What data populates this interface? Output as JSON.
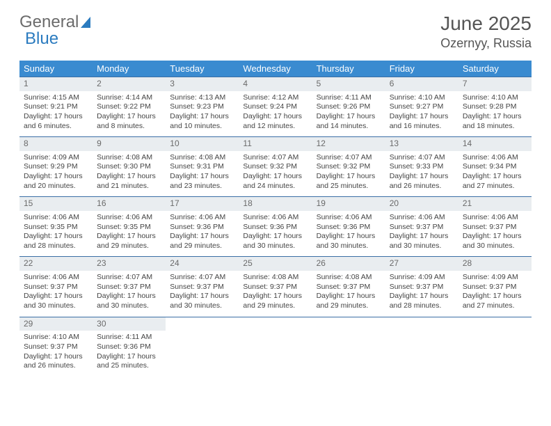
{
  "brand": {
    "part1": "General",
    "part2": "Blue"
  },
  "title": {
    "month": "June 2025",
    "location": "Ozernyy, Russia"
  },
  "colors": {
    "header_bg": "#3a8bd0",
    "daynum_bg": "#e9edf0",
    "rule": "#3a6ea5",
    "text_muted": "#6a6a6a",
    "brand_gray": "#6b6b6b",
    "brand_blue": "#2b7bbf"
  },
  "weekdays": [
    "Sunday",
    "Monday",
    "Tuesday",
    "Wednesday",
    "Thursday",
    "Friday",
    "Saturday"
  ],
  "weeks": [
    [
      {
        "n": "1",
        "sunrise": "Sunrise: 4:15 AM",
        "sunset": "Sunset: 9:21 PM",
        "day1": "Daylight: 17 hours",
        "day2": "and 6 minutes."
      },
      {
        "n": "2",
        "sunrise": "Sunrise: 4:14 AM",
        "sunset": "Sunset: 9:22 PM",
        "day1": "Daylight: 17 hours",
        "day2": "and 8 minutes."
      },
      {
        "n": "3",
        "sunrise": "Sunrise: 4:13 AM",
        "sunset": "Sunset: 9:23 PM",
        "day1": "Daylight: 17 hours",
        "day2": "and 10 minutes."
      },
      {
        "n": "4",
        "sunrise": "Sunrise: 4:12 AM",
        "sunset": "Sunset: 9:24 PM",
        "day1": "Daylight: 17 hours",
        "day2": "and 12 minutes."
      },
      {
        "n": "5",
        "sunrise": "Sunrise: 4:11 AM",
        "sunset": "Sunset: 9:26 PM",
        "day1": "Daylight: 17 hours",
        "day2": "and 14 minutes."
      },
      {
        "n": "6",
        "sunrise": "Sunrise: 4:10 AM",
        "sunset": "Sunset: 9:27 PM",
        "day1": "Daylight: 17 hours",
        "day2": "and 16 minutes."
      },
      {
        "n": "7",
        "sunrise": "Sunrise: 4:10 AM",
        "sunset": "Sunset: 9:28 PM",
        "day1": "Daylight: 17 hours",
        "day2": "and 18 minutes."
      }
    ],
    [
      {
        "n": "8",
        "sunrise": "Sunrise: 4:09 AM",
        "sunset": "Sunset: 9:29 PM",
        "day1": "Daylight: 17 hours",
        "day2": "and 20 minutes."
      },
      {
        "n": "9",
        "sunrise": "Sunrise: 4:08 AM",
        "sunset": "Sunset: 9:30 PM",
        "day1": "Daylight: 17 hours",
        "day2": "and 21 minutes."
      },
      {
        "n": "10",
        "sunrise": "Sunrise: 4:08 AM",
        "sunset": "Sunset: 9:31 PM",
        "day1": "Daylight: 17 hours",
        "day2": "and 23 minutes."
      },
      {
        "n": "11",
        "sunrise": "Sunrise: 4:07 AM",
        "sunset": "Sunset: 9:32 PM",
        "day1": "Daylight: 17 hours",
        "day2": "and 24 minutes."
      },
      {
        "n": "12",
        "sunrise": "Sunrise: 4:07 AM",
        "sunset": "Sunset: 9:32 PM",
        "day1": "Daylight: 17 hours",
        "day2": "and 25 minutes."
      },
      {
        "n": "13",
        "sunrise": "Sunrise: 4:07 AM",
        "sunset": "Sunset: 9:33 PM",
        "day1": "Daylight: 17 hours",
        "day2": "and 26 minutes."
      },
      {
        "n": "14",
        "sunrise": "Sunrise: 4:06 AM",
        "sunset": "Sunset: 9:34 PM",
        "day1": "Daylight: 17 hours",
        "day2": "and 27 minutes."
      }
    ],
    [
      {
        "n": "15",
        "sunrise": "Sunrise: 4:06 AM",
        "sunset": "Sunset: 9:35 PM",
        "day1": "Daylight: 17 hours",
        "day2": "and 28 minutes."
      },
      {
        "n": "16",
        "sunrise": "Sunrise: 4:06 AM",
        "sunset": "Sunset: 9:35 PM",
        "day1": "Daylight: 17 hours",
        "day2": "and 29 minutes."
      },
      {
        "n": "17",
        "sunrise": "Sunrise: 4:06 AM",
        "sunset": "Sunset: 9:36 PM",
        "day1": "Daylight: 17 hours",
        "day2": "and 29 minutes."
      },
      {
        "n": "18",
        "sunrise": "Sunrise: 4:06 AM",
        "sunset": "Sunset: 9:36 PM",
        "day1": "Daylight: 17 hours",
        "day2": "and 30 minutes."
      },
      {
        "n": "19",
        "sunrise": "Sunrise: 4:06 AM",
        "sunset": "Sunset: 9:36 PM",
        "day1": "Daylight: 17 hours",
        "day2": "and 30 minutes."
      },
      {
        "n": "20",
        "sunrise": "Sunrise: 4:06 AM",
        "sunset": "Sunset: 9:37 PM",
        "day1": "Daylight: 17 hours",
        "day2": "and 30 minutes."
      },
      {
        "n": "21",
        "sunrise": "Sunrise: 4:06 AM",
        "sunset": "Sunset: 9:37 PM",
        "day1": "Daylight: 17 hours",
        "day2": "and 30 minutes."
      }
    ],
    [
      {
        "n": "22",
        "sunrise": "Sunrise: 4:06 AM",
        "sunset": "Sunset: 9:37 PM",
        "day1": "Daylight: 17 hours",
        "day2": "and 30 minutes."
      },
      {
        "n": "23",
        "sunrise": "Sunrise: 4:07 AM",
        "sunset": "Sunset: 9:37 PM",
        "day1": "Daylight: 17 hours",
        "day2": "and 30 minutes."
      },
      {
        "n": "24",
        "sunrise": "Sunrise: 4:07 AM",
        "sunset": "Sunset: 9:37 PM",
        "day1": "Daylight: 17 hours",
        "day2": "and 30 minutes."
      },
      {
        "n": "25",
        "sunrise": "Sunrise: 4:08 AM",
        "sunset": "Sunset: 9:37 PM",
        "day1": "Daylight: 17 hours",
        "day2": "and 29 minutes."
      },
      {
        "n": "26",
        "sunrise": "Sunrise: 4:08 AM",
        "sunset": "Sunset: 9:37 PM",
        "day1": "Daylight: 17 hours",
        "day2": "and 29 minutes."
      },
      {
        "n": "27",
        "sunrise": "Sunrise: 4:09 AM",
        "sunset": "Sunset: 9:37 PM",
        "day1": "Daylight: 17 hours",
        "day2": "and 28 minutes."
      },
      {
        "n": "28",
        "sunrise": "Sunrise: 4:09 AM",
        "sunset": "Sunset: 9:37 PM",
        "day1": "Daylight: 17 hours",
        "day2": "and 27 minutes."
      }
    ],
    [
      {
        "n": "29",
        "sunrise": "Sunrise: 4:10 AM",
        "sunset": "Sunset: 9:37 PM",
        "day1": "Daylight: 17 hours",
        "day2": "and 26 minutes."
      },
      {
        "n": "30",
        "sunrise": "Sunrise: 4:11 AM",
        "sunset": "Sunset: 9:36 PM",
        "day1": "Daylight: 17 hours",
        "day2": "and 25 minutes."
      },
      null,
      null,
      null,
      null,
      null
    ]
  ]
}
